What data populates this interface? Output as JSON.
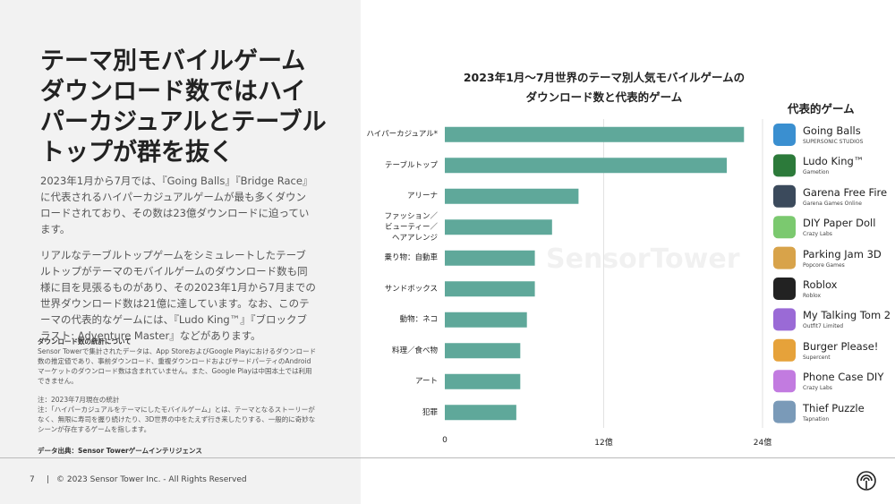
{
  "slide": {
    "headline": "テーマ別モバイルゲームダウンロード数ではハイパーカジュアルとテーブルトップが群を抜く",
    "paragraphs": [
      "2023年1月から7月では、『Going Balls』『Bridge Race』に代表されるハイパーカジュアルゲームが最も多くダウンロードされており、その数は23億ダウンロードに迫っています。",
      "リアルなテーブルトップゲームをシミュレートしたテーブルトップがテーマのモバイルゲームのダウンロード数も同様に目を見張るものがあり、その2023年1月から7月までの世界ダウンロード数は21億に達しています。なお、このテーマの代表的なゲームには、『Ludo King™』『ブロックブラスト: Adventure Master』などがあります。"
    ],
    "notes_title": "ダウンロード数の統計について",
    "notes_body": "Sensor Towerで集計されたデータは、App StoreおよびGoogle Playにおけるダウンロード数の推定値であり、事前ダウンロード、重複ダウンロードおよびサードパーティのAndroidマーケットのダウンロード数は含まれていません。また、Google Playは中国本土では利用できません。",
    "note_1": "注：2023年7月現在の統計",
    "note_2": "注：「ハイパーカジュアルをテーマにしたモバイルゲーム」とは、テーマとなるストーリーがなく、無限に寿司を握り続けたり、3D世界の中をたえず行き来したりする、一般的に奇妙なシーンが存在するゲームを指します。",
    "source": "データ出典：Sensor Towerゲームインテリジェンス",
    "page_number": "7",
    "footer_separator": "|",
    "copyright": "© 2023 Sensor Tower Inc. - All Rights Reserved",
    "watermark": "SensorTower"
  },
  "chart_data": {
    "type": "bar",
    "orientation": "horizontal",
    "title": "2023年1月～7月世界のテーマ別人気モバイルゲームの\nダウンロード数と代表的ゲーム",
    "categories": [
      "ハイパーカジュアル*",
      "テーブルトップ",
      "アリーナ",
      "ファッション／\nビューティー／\nヘアアレンジ",
      "乗り物：自動車",
      "サンドボックス",
      "動物：ネコ",
      "料理／食べ物",
      "アート",
      "犯罪"
    ],
    "values": [
      22.6,
      21.3,
      10.1,
      8.1,
      6.8,
      6.8,
      6.2,
      5.7,
      5.7,
      5.4
    ],
    "color": "#5fa89a",
    "xlim": [
      0,
      24
    ],
    "xticks": [
      0,
      {
        "value": 12,
        "label": "12億"
      },
      {
        "value": 24,
        "label": "24億"
      }
    ],
    "grid": true
  },
  "games": {
    "title": "代表的ゲーム",
    "items": [
      {
        "name": "Going Balls",
        "publisher": "SUPERSONIC STUDIOS"
      },
      {
        "name": "Ludo King™",
        "publisher": "Gametion"
      },
      {
        "name": "Garena Free Fire",
        "publisher": "Garena Games Online"
      },
      {
        "name": "DIY Paper Doll",
        "publisher": "Crazy Labs"
      },
      {
        "name": "Parking Jam 3D",
        "publisher": "Popcore Games"
      },
      {
        "name": "Roblox",
        "publisher": "Roblox"
      },
      {
        "name": "My Talking Tom 2",
        "publisher": "Outfit7 Limited"
      },
      {
        "name": "Burger Please!",
        "publisher": "Supercent"
      },
      {
        "name": "Phone Case DIY",
        "publisher": "Crazy Labs"
      },
      {
        "name": "Thief Puzzle",
        "publisher": "Tapnation"
      }
    ]
  }
}
